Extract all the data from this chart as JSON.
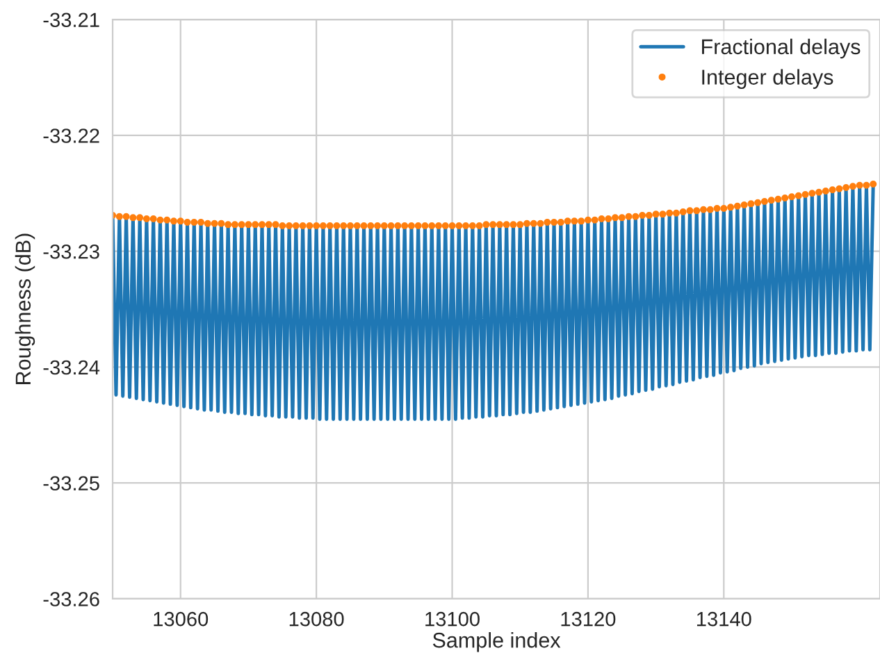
{
  "chart_data": {
    "type": "line",
    "xlabel": "Sample index",
    "ylabel": "Roughness (dB)",
    "xlim": [
      13050,
      13163
    ],
    "xticks": [
      13060,
      13080,
      13100,
      13120,
      13140
    ],
    "ylim": [
      -33.26,
      -33.21
    ],
    "yticks": [
      -33.26,
      -33.25,
      -33.24,
      -33.23,
      -33.22,
      -33.21
    ],
    "grid": true,
    "legend": "top right",
    "series": [
      {
        "name": "Fractional delays",
        "color": "#1f77b4",
        "line_style": "solid",
        "x": [
          13050,
          13050.5,
          13051,
          13051.5,
          13052,
          13052.5,
          13053,
          13053.5,
          13054,
          13054.5,
          13055,
          13055.5,
          13056,
          13056.5,
          13057,
          13057.5,
          13058,
          13058.5,
          13059,
          13059.5,
          13060,
          13060.5,
          13061,
          13061.5,
          13062,
          13062.5,
          13063,
          13063.5,
          13064,
          13064.5,
          13065,
          13065.5,
          13066,
          13066.5,
          13067,
          13067.5,
          13068,
          13068.5,
          13069,
          13069.5,
          13070,
          13070.5,
          13071,
          13071.5,
          13072,
          13072.5,
          13073,
          13073.5,
          13074,
          13074.5,
          13075,
          13075.5,
          13076,
          13076.5,
          13077,
          13077.5,
          13078,
          13078.5,
          13079,
          13079.5,
          13080,
          13080.5,
          13081,
          13081.5,
          13082,
          13082.5,
          13083,
          13083.5,
          13084,
          13084.5,
          13085,
          13085.5,
          13086,
          13086.5,
          13087,
          13087.5,
          13088,
          13088.5,
          13089,
          13089.5,
          13090,
          13090.5,
          13091,
          13091.5,
          13092,
          13092.5,
          13093,
          13093.5,
          13094,
          13094.5,
          13095,
          13095.5,
          13096,
          13096.5,
          13097,
          13097.5,
          13098,
          13098.5,
          13099,
          13099.5,
          13100,
          13100.5,
          13101,
          13101.5,
          13102,
          13102.5,
          13103,
          13103.5,
          13104,
          13104.5,
          13105,
          13105.5,
          13106,
          13106.5,
          13107,
          13107.5,
          13108,
          13108.5,
          13109,
          13109.5,
          13110,
          13110.5,
          13111,
          13111.5,
          13112,
          13112.5,
          13113,
          13113.5,
          13114,
          13114.5,
          13115,
          13115.5,
          13116,
          13116.5,
          13117,
          13117.5,
          13118,
          13118.5,
          13119,
          13119.5,
          13120,
          13120.5,
          13121,
          13121.5,
          13122,
          13122.5,
          13123,
          13123.5,
          13124,
          13124.5,
          13125,
          13125.5,
          13126,
          13126.5,
          13127,
          13127.5,
          13128,
          13128.5,
          13129,
          13129.5,
          13130,
          13130.5,
          13131,
          13131.5,
          13132,
          13132.5,
          13133,
          13133.5,
          13134,
          13134.5,
          13135,
          13135.5,
          13136,
          13136.5,
          13137,
          13137.5,
          13138,
          13138.5,
          13139,
          13139.5,
          13140,
          13140.5,
          13141,
          13141.5,
          13142,
          13142.5,
          13143,
          13143.5,
          13144,
          13144.5,
          13145,
          13145.5,
          13146,
          13146.5,
          13147,
          13147.5,
          13148,
          13148.5,
          13149,
          13149.5,
          13150,
          13150.5,
          13151,
          13151.5,
          13152,
          13152.5,
          13153,
          13153.5,
          13154,
          13154.5,
          13155,
          13155.5,
          13156,
          13156.5,
          13157,
          13157.5,
          13158,
          13158.5,
          13159,
          13159.5,
          13160,
          13160.5,
          13161,
          13161.5,
          13162
        ],
        "values": [
          -33.2269,
          -33.2424,
          -33.227,
          -33.2425,
          -33.227,
          -33.2426,
          -33.2271,
          -33.2427,
          -33.2271,
          -33.2428,
          -33.2272,
          -33.2429,
          -33.2272,
          -33.243,
          -33.2273,
          -33.2431,
          -33.2273,
          -33.2432,
          -33.2274,
          -33.2433,
          -33.2274,
          -33.2434,
          -33.2275,
          -33.2435,
          -33.2275,
          -33.2436,
          -33.2275,
          -33.2437,
          -33.2276,
          -33.2437,
          -33.2276,
          -33.2438,
          -33.2276,
          -33.2439,
          -33.2277,
          -33.2439,
          -33.2277,
          -33.244,
          -33.2277,
          -33.244,
          -33.2277,
          -33.2441,
          -33.2277,
          -33.2441,
          -33.2277,
          -33.2442,
          -33.2277,
          -33.2442,
          -33.2277,
          -33.2443,
          -33.2278,
          -33.2443,
          -33.2278,
          -33.2443,
          -33.2278,
          -33.2444,
          -33.2278,
          -33.2444,
          -33.2278,
          -33.2444,
          -33.2278,
          -33.2445,
          -33.2278,
          -33.2445,
          -33.2278,
          -33.2445,
          -33.2278,
          -33.2445,
          -33.2278,
          -33.2445,
          -33.2278,
          -33.2445,
          -33.2278,
          -33.2445,
          -33.2278,
          -33.2445,
          -33.2278,
          -33.2445,
          -33.2278,
          -33.2445,
          -33.2278,
          -33.2445,
          -33.2278,
          -33.2445,
          -33.2278,
          -33.2445,
          -33.2278,
          -33.2445,
          -33.2278,
          -33.2445,
          -33.2278,
          -33.2445,
          -33.2278,
          -33.2445,
          -33.2278,
          -33.2445,
          -33.2278,
          -33.2445,
          -33.2278,
          -33.2445,
          -33.2278,
          -33.2445,
          -33.2278,
          -33.2444,
          -33.2278,
          -33.2444,
          -33.2278,
          -33.2443,
          -33.2278,
          -33.2443,
          -33.2277,
          -33.2442,
          -33.2277,
          -33.2442,
          -33.2277,
          -33.2441,
          -33.2277,
          -33.2441,
          -33.2277,
          -33.244,
          -33.2277,
          -33.2439,
          -33.2276,
          -33.2439,
          -33.2276,
          -33.2438,
          -33.2276,
          -33.2437,
          -33.2275,
          -33.2436,
          -33.2275,
          -33.2435,
          -33.2275,
          -33.2434,
          -33.2274,
          -33.2433,
          -33.2274,
          -33.2432,
          -33.2274,
          -33.2431,
          -33.2273,
          -33.243,
          -33.2273,
          -33.2429,
          -33.2272,
          -33.2428,
          -33.2272,
          -33.2427,
          -33.2271,
          -33.2425,
          -33.2271,
          -33.2424,
          -33.227,
          -33.2423,
          -33.227,
          -33.2421,
          -33.2269,
          -33.242,
          -33.2269,
          -33.2419,
          -33.2268,
          -33.2417,
          -33.2268,
          -33.2416,
          -33.2267,
          -33.2415,
          -33.2267,
          -33.2413,
          -33.2266,
          -33.2412,
          -33.2265,
          -33.2411,
          -33.2265,
          -33.2409,
          -33.2264,
          -33.2408,
          -33.2264,
          -33.2407,
          -33.2263,
          -33.2405,
          -33.2263,
          -33.2404,
          -33.2262,
          -33.2403,
          -33.2261,
          -33.2401,
          -33.226,
          -33.24,
          -33.2259,
          -33.2399,
          -33.2258,
          -33.2397,
          -33.2257,
          -33.2396,
          -33.2256,
          -33.2395,
          -33.2255,
          -33.2394,
          -33.2254,
          -33.2393,
          -33.2253,
          -33.2392,
          -33.2252,
          -33.2391,
          -33.2251,
          -33.239,
          -33.225,
          -33.239,
          -33.2249,
          -33.2389,
          -33.2248,
          -33.2388,
          -33.2247,
          -33.2388,
          -33.2246,
          -33.2387,
          -33.2245,
          -33.2386,
          -33.2244,
          -33.2386,
          -33.2243,
          -33.2385,
          -33.2243,
          -33.2385,
          -33.2242
        ]
      },
      {
        "name": "Integer delays",
        "type": "scatter",
        "color": "#ff7f0e",
        "marker": "circle",
        "x": [
          13050,
          13051,
          13052,
          13053,
          13054,
          13055,
          13056,
          13057,
          13058,
          13059,
          13060,
          13061,
          13062,
          13063,
          13064,
          13065,
          13066,
          13067,
          13068,
          13069,
          13070,
          13071,
          13072,
          13073,
          13074,
          13075,
          13076,
          13077,
          13078,
          13079,
          13080,
          13081,
          13082,
          13083,
          13084,
          13085,
          13086,
          13087,
          13088,
          13089,
          13090,
          13091,
          13092,
          13093,
          13094,
          13095,
          13096,
          13097,
          13098,
          13099,
          13100,
          13101,
          13102,
          13103,
          13104,
          13105,
          13106,
          13107,
          13108,
          13109,
          13110,
          13111,
          13112,
          13113,
          13114,
          13115,
          13116,
          13117,
          13118,
          13119,
          13120,
          13121,
          13122,
          13123,
          13124,
          13125,
          13126,
          13127,
          13128,
          13129,
          13130,
          13131,
          13132,
          13133,
          13134,
          13135,
          13136,
          13137,
          13138,
          13139,
          13140,
          13141,
          13142,
          13143,
          13144,
          13145,
          13146,
          13147,
          13148,
          13149,
          13150,
          13151,
          13152,
          13153,
          13154,
          13155,
          13156,
          13157,
          13158,
          13159,
          13160,
          13161,
          13162
        ],
        "values": [
          -33.2269,
          -33.227,
          -33.227,
          -33.2271,
          -33.2271,
          -33.2272,
          -33.2272,
          -33.2273,
          -33.2273,
          -33.2274,
          -33.2274,
          -33.2275,
          -33.2275,
          -33.2275,
          -33.2276,
          -33.2276,
          -33.2276,
          -33.2277,
          -33.2277,
          -33.2277,
          -33.2277,
          -33.2277,
          -33.2277,
          -33.2277,
          -33.2277,
          -33.2278,
          -33.2278,
          -33.2278,
          -33.2278,
          -33.2278,
          -33.2278,
          -33.2278,
          -33.2278,
          -33.2278,
          -33.2278,
          -33.2278,
          -33.2278,
          -33.2278,
          -33.2278,
          -33.2278,
          -33.2278,
          -33.2278,
          -33.2278,
          -33.2278,
          -33.2278,
          -33.2278,
          -33.2278,
          -33.2278,
          -33.2278,
          -33.2278,
          -33.2278,
          -33.2278,
          -33.2278,
          -33.2278,
          -33.2278,
          -33.2277,
          -33.2277,
          -33.2277,
          -33.2277,
          -33.2277,
          -33.2277,
          -33.2276,
          -33.2276,
          -33.2276,
          -33.2275,
          -33.2275,
          -33.2275,
          -33.2274,
          -33.2274,
          -33.2274,
          -33.2273,
          -33.2273,
          -33.2272,
          -33.2272,
          -33.2271,
          -33.2271,
          -33.227,
          -33.227,
          -33.2269,
          -33.2269,
          -33.2268,
          -33.2268,
          -33.2267,
          -33.2267,
          -33.2266,
          -33.2265,
          -33.2265,
          -33.2264,
          -33.2264,
          -33.2263,
          -33.2263,
          -33.2262,
          -33.2261,
          -33.226,
          -33.2259,
          -33.2258,
          -33.2257,
          -33.2256,
          -33.2255,
          -33.2254,
          -33.2253,
          -33.2252,
          -33.2251,
          -33.225,
          -33.2249,
          -33.2248,
          -33.2247,
          -33.2246,
          -33.2245,
          -33.2244,
          -33.2243,
          -33.2243,
          -33.2242
        ]
      }
    ]
  }
}
